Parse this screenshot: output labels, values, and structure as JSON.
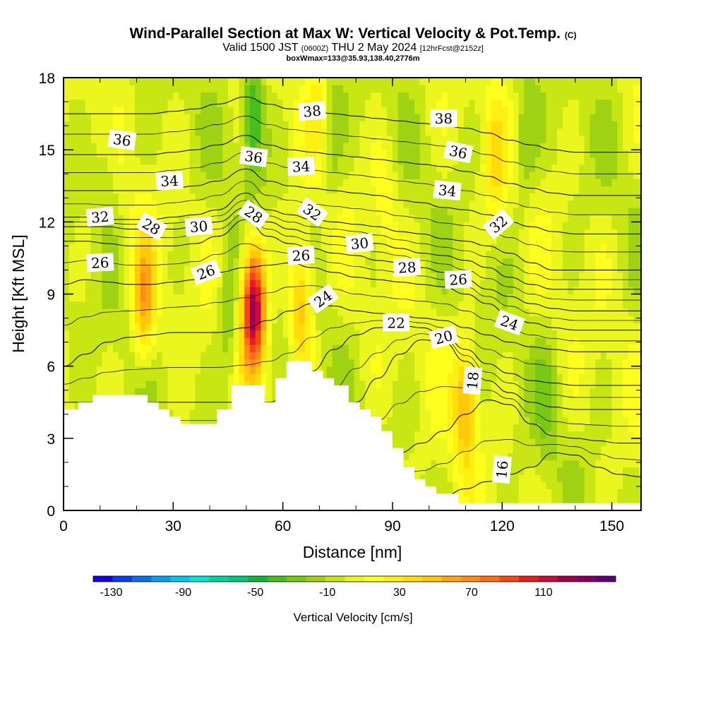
{
  "header": {
    "title_main": "Wind-Parallel Section at Max W: Vertical Velocity & Pot.Temp.",
    "title_mark": "(C)",
    "valid_prefix": "Valid 1500 JST",
    "valid_utc": "(0600Z)",
    "valid_date": "THU 2 May 2024",
    "valid_fcst": "[12hrFcst@2152z]",
    "box_info": "boxWmax=133@35.93,138.40,2776m"
  },
  "chart_data": {
    "type": "heatmap",
    "xlabel": "Distance [nm]",
    "ylabel": "Height [Kft MSL]",
    "xlim": [
      0,
      158
    ],
    "ylim": [
      0,
      18
    ],
    "x_ticks": [
      0,
      30,
      60,
      90,
      120,
      150
    ],
    "y_ticks": [
      0,
      3,
      6,
      9,
      12,
      15,
      18
    ],
    "colorbar": {
      "title": "Vertical Velocity [cm/s]",
      "tick_labels": [
        -130,
        -90,
        -50,
        -10,
        30,
        70,
        110
      ],
      "range": [
        -140,
        150
      ],
      "colors": [
        "#1600e6",
        "#0a3cf0",
        "#0a6ef0",
        "#0aa0f0",
        "#00c8e6",
        "#00e6d2",
        "#00d2a0",
        "#00c878",
        "#14b43c",
        "#46be1e",
        "#78c814",
        "#a0d214",
        "#c8e614",
        "#ebf51e",
        "#ffff1e",
        "#fff014",
        "#ffdc0a",
        "#ffc80a",
        "#ffa514",
        "#ff8c14",
        "#ff6e14",
        "#f54614",
        "#e61e1e",
        "#c80a3c",
        "#a00050",
        "#820064",
        "#5a0078"
      ]
    },
    "terrain_profile": [
      [
        0,
        4.2
      ],
      [
        4,
        4.2
      ],
      [
        4,
        4.5
      ],
      [
        8,
        4.5
      ],
      [
        8,
        4.8
      ],
      [
        23,
        4.8
      ],
      [
        23,
        4.5
      ],
      [
        26,
        4.5
      ],
      [
        26,
        4.2
      ],
      [
        29,
        4.2
      ],
      [
        29,
        3.9
      ],
      [
        32,
        3.9
      ],
      [
        32,
        3.6
      ],
      [
        42,
        3.6
      ],
      [
        42,
        4.2
      ],
      [
        46,
        4.2
      ],
      [
        46,
        5.2
      ],
      [
        55,
        5.2
      ],
      [
        55,
        4.5
      ],
      [
        58,
        4.5
      ],
      [
        58,
        5.5
      ],
      [
        61,
        5.5
      ],
      [
        61,
        6.2
      ],
      [
        68,
        6.2
      ],
      [
        68,
        5.8
      ],
      [
        71,
        5.8
      ],
      [
        71,
        5.5
      ],
      [
        74,
        5.5
      ],
      [
        74,
        5.2
      ],
      [
        78,
        5.2
      ],
      [
        78,
        4.5
      ],
      [
        81,
        4.5
      ],
      [
        81,
        4.2
      ],
      [
        84,
        4.2
      ],
      [
        84,
        3.9
      ],
      [
        87,
        3.9
      ],
      [
        87,
        3.3
      ],
      [
        90,
        3.3
      ],
      [
        90,
        2.6
      ],
      [
        93,
        2.6
      ],
      [
        93,
        1.8
      ],
      [
        96,
        1.8
      ],
      [
        96,
        1.3
      ],
      [
        99,
        1.3
      ],
      [
        99,
        1.0
      ],
      [
        102,
        1.0
      ],
      [
        102,
        0.7
      ],
      [
        108,
        0.7
      ],
      [
        108,
        0.3
      ],
      [
        158,
        0.3
      ]
    ],
    "updraft_cores": [
      {
        "x": 22,
        "z": 8.8,
        "w": 60
      },
      {
        "x": 52,
        "z": 8.5,
        "w": 133
      },
      {
        "x": 65,
        "z": 8.5,
        "w": 55
      },
      {
        "x": 110,
        "z": 4.5,
        "w": 55
      },
      {
        "x": 118,
        "z": 14.5,
        "w": 30
      },
      {
        "x": 70,
        "z": 17,
        "w": 22
      },
      {
        "x": 88,
        "z": 13,
        "w": 18
      }
    ],
    "downdraft_cores": [
      {
        "x": 45,
        "z": 8.0,
        "w": -25
      },
      {
        "x": 52,
        "z": 16.5,
        "w": -50
      },
      {
        "x": 73,
        "z": 15.5,
        "w": -20
      },
      {
        "x": 126,
        "z": 15,
        "w": -22
      },
      {
        "x": 132,
        "z": 4.5,
        "w": -15
      },
      {
        "x": 12,
        "z": 15,
        "w": -15
      }
    ],
    "isentropes": [
      {
        "theta": 16,
        "z": [
          0.8,
          0.8,
          0.8,
          0.8,
          0.8,
          0.8,
          0.8,
          0.8,
          0.8,
          0.8,
          0.8,
          0.8,
          0.8,
          0.8,
          0.5,
          0.5,
          0.5,
          0.6,
          0.9,
          1.2,
          1.5,
          1.8,
          2.4,
          2.3,
          1.8,
          1.5,
          1.4
        ]
      },
      {
        "theta": 18,
        "z": [
          2.0,
          2.0,
          2.0,
          2.0,
          2.0,
          2.0,
          2.0,
          2.0,
          2.0,
          2.0,
          2.0,
          2.0,
          2.0,
          2.0,
          2.0,
          2.4,
          2.8,
          3.3,
          4.0,
          4.6,
          4.4,
          3.6,
          3.1,
          3.0,
          2.9,
          2.8,
          2.8
        ]
      },
      {
        "theta": 20,
        "z": [
          3.0,
          3.0,
          3.0,
          3.0,
          3.0,
          3.0,
          3.0,
          3.0,
          3.0,
          3.0,
          3.0,
          3.0,
          3.5,
          4.5,
          5.5,
          6.5,
          7.1,
          7.0,
          6.2,
          5.4,
          4.9,
          4.5,
          4.3,
          4.2,
          4.2,
          4.2,
          4.2
        ]
      },
      {
        "theta": 22,
        "z": [
          4.5,
          4.5,
          4.5,
          4.5,
          4.5,
          4.5,
          4.5,
          4.5,
          4.5,
          4.5,
          4.8,
          5.8,
          6.7,
          7.3,
          7.6,
          7.7,
          7.6,
          7.3,
          6.7,
          6.1,
          5.7,
          5.4,
          5.3,
          5.2,
          5.2,
          5.2,
          5.2
        ]
      },
      {
        "theta": 24,
        "z": [
          6.0,
          6.5,
          7.0,
          7.2,
          7.3,
          7.4,
          7.4,
          7.4,
          7.6,
          7.9,
          8.3,
          8.6,
          8.5,
          8.3,
          8.2,
          8.1,
          8.0,
          7.9,
          7.6,
          7.3,
          7.0,
          6.8,
          6.7,
          6.6,
          6.6,
          6.6,
          6.6
        ]
      },
      {
        "theta": 26,
        "z": [
          9.4,
          9.6,
          9.5,
          9.4,
          9.4,
          9.5,
          9.6,
          9.9,
          10.1,
          10.2,
          10.3,
          10.1,
          9.9,
          9.7,
          9.6,
          9.5,
          9.4,
          9.3,
          9.0,
          8.6,
          8.1,
          7.8,
          7.6,
          7.5,
          7.5,
          7.5,
          7.5
        ]
      },
      {
        "theta": 28,
        "z": [
          11.2,
          11.2,
          11.1,
          11.0,
          11.0,
          11.0,
          11.1,
          11.4,
          12.1,
          11.4,
          11.1,
          10.9,
          10.7,
          10.6,
          10.4,
          10.3,
          10.1,
          9.9,
          9.6,
          9.2,
          8.9,
          8.6,
          8.4,
          8.3,
          8.3,
          8.3,
          8.3
        ]
      },
      {
        "theta": 30,
        "z": [
          11.8,
          11.8,
          11.8,
          11.7,
          11.7,
          11.7,
          11.8,
          12.0,
          12.6,
          12.0,
          11.7,
          11.5,
          11.4,
          11.3,
          11.1,
          10.9,
          10.7,
          10.6,
          10.4,
          10.1,
          9.7,
          9.4,
          9.2,
          9.2,
          9.2,
          9.2,
          9.2
        ]
      },
      {
        "theta": 32,
        "z": [
          12.2,
          12.2,
          12.1,
          12.1,
          12.1,
          12.2,
          12.3,
          12.5,
          13.2,
          12.5,
          12.3,
          12.1,
          12.0,
          11.9,
          11.8,
          11.6,
          11.5,
          11.3,
          11.2,
          11.0,
          10.7,
          10.3,
          10.0,
          10.0,
          10.0,
          10.0,
          10.0
        ]
      },
      {
        "theta": 34,
        "z": [
          13.3,
          13.3,
          13.3,
          13.3,
          13.3,
          13.4,
          13.5,
          13.7,
          14.2,
          13.7,
          13.5,
          13.4,
          13.3,
          13.2,
          13.1,
          12.9,
          12.8,
          12.6,
          12.5,
          12.3,
          12.0,
          11.8,
          11.6,
          11.5,
          11.5,
          11.5,
          11.5
        ]
      },
      {
        "theta": 36,
        "z": [
          14.8,
          14.8,
          14.8,
          14.8,
          14.8,
          14.9,
          15.0,
          15.2,
          15.6,
          15.2,
          15.0,
          14.9,
          14.8,
          14.7,
          14.6,
          14.5,
          14.4,
          14.3,
          14.1,
          13.9,
          13.6,
          13.4,
          13.2,
          13.1,
          13.1,
          13.1,
          13.1
        ]
      },
      {
        "theta": 38,
        "z": [
          16.5,
          16.5,
          16.5,
          16.5,
          16.5,
          16.6,
          16.7,
          16.9,
          17.2,
          16.9,
          16.7,
          16.6,
          16.5,
          16.4,
          16.3,
          16.2,
          16.1,
          16.0,
          15.9,
          15.7,
          15.4,
          15.2,
          15.0,
          14.9,
          14.9,
          14.9,
          14.9
        ]
      }
    ],
    "isentrope_x": [
      0,
      6,
      12,
      18,
      24,
      30,
      36,
      42,
      50,
      56,
      62,
      68,
      74,
      80,
      86,
      92,
      98,
      104,
      110,
      116,
      122,
      128,
      134,
      140,
      146,
      152,
      158
    ],
    "contour_labels": [
      {
        "text": "38",
        "x": 68,
        "z": 16.6,
        "angle": -5
      },
      {
        "text": "38",
        "x": 104,
        "z": 16.3,
        "angle": 0
      },
      {
        "text": "36",
        "x": 16,
        "z": 15.4,
        "angle": 8
      },
      {
        "text": "36",
        "x": 52,
        "z": 14.7,
        "angle": 8
      },
      {
        "text": "36",
        "x": 108,
        "z": 14.9,
        "angle": 12
      },
      {
        "text": "34",
        "x": 29,
        "z": 13.7,
        "angle": -3
      },
      {
        "text": "34",
        "x": 65,
        "z": 14.3,
        "angle": -3
      },
      {
        "text": "34",
        "x": 105,
        "z": 13.3,
        "angle": 6
      },
      {
        "text": "32",
        "x": 10,
        "z": 12.2,
        "angle": -5
      },
      {
        "text": "32",
        "x": 68,
        "z": 12.4,
        "angle": 35
      },
      {
        "text": "32",
        "x": 119,
        "z": 11.9,
        "angle": -40
      },
      {
        "text": "28",
        "x": 24,
        "z": 11.8,
        "angle": 30
      },
      {
        "text": "28",
        "x": 52,
        "z": 12.3,
        "angle": 35
      },
      {
        "text": "28",
        "x": 94,
        "z": 10.1,
        "angle": -3
      },
      {
        "text": "30",
        "x": 37,
        "z": 11.8,
        "angle": -5
      },
      {
        "text": "30",
        "x": 81,
        "z": 11.1,
        "angle": -5
      },
      {
        "text": "26",
        "x": 10,
        "z": 10.3,
        "angle": -3
      },
      {
        "text": "26",
        "x": 39,
        "z": 9.9,
        "angle": -20
      },
      {
        "text": "26",
        "x": 65,
        "z": 10.6,
        "angle": -3
      },
      {
        "text": "26",
        "x": 108,
        "z": 9.6,
        "angle": -3
      },
      {
        "text": "24",
        "x": 71,
        "z": 8.8,
        "angle": -35
      },
      {
        "text": "24",
        "x": 122,
        "z": 7.8,
        "angle": 20
      },
      {
        "text": "22",
        "x": 91,
        "z": 7.8,
        "angle": 0
      },
      {
        "text": "20",
        "x": 104,
        "z": 7.2,
        "angle": -15
      },
      {
        "text": "18",
        "x": 112,
        "z": 5.4,
        "angle": -85
      },
      {
        "text": "16",
        "x": 120,
        "z": 1.7,
        "angle": -85
      }
    ]
  }
}
